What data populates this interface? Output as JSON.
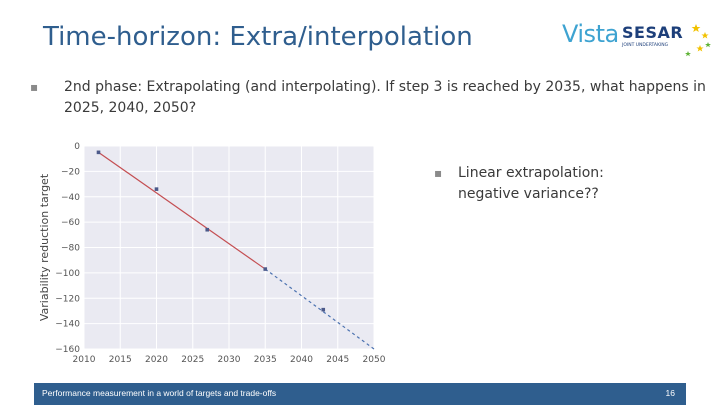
{
  "slide": {
    "title": "Time-horizon: Extra/interpolation",
    "bullet_main": {
      "bold": "2nd phase",
      "text": ": Extrapolating (and interpolating). If step 3 is reached by 2035, what happens in 2025, 2040, 2050?"
    },
    "bullet_side": {
      "text": "Linear extrapolation: negative variance??"
    },
    "bullet_glyph": "▪"
  },
  "logo": {
    "vista": "Vista",
    "sesar": "SESAR",
    "sub": "JOINT UNDERTAKING"
  },
  "footer": {
    "text": "Performance measurement in a world of targets and trade-offs",
    "page": "16",
    "color": "#2f5e8e"
  },
  "chart_data": {
    "type": "line",
    "title": "",
    "xlabel": "",
    "ylabel": "Variability reduction target",
    "xlim": [
      2010,
      2050
    ],
    "ylim": [
      -160,
      0
    ],
    "xticks": [
      2010,
      2015,
      2020,
      2025,
      2030,
      2035,
      2040,
      2045,
      2050
    ],
    "yticks": [
      0,
      -20,
      -40,
      -60,
      -80,
      -100,
      -120,
      -140,
      -160
    ],
    "grid": true,
    "background": "#eaeaf2",
    "series": [
      {
        "style": "solid",
        "color": "#c44e52",
        "x": [
          2012,
          2035
        ],
        "y": [
          -5,
          -97
        ]
      },
      {
        "style": "dashed",
        "color": "#4c72b0",
        "x": [
          2035,
          2050
        ],
        "y": [
          -97,
          -160
        ]
      }
    ],
    "points": {
      "color": "#4c5a8a",
      "x": [
        2012,
        2020,
        2027,
        2035,
        2043
      ],
      "y": [
        -5,
        -34,
        -66,
        -97,
        -129
      ]
    }
  }
}
